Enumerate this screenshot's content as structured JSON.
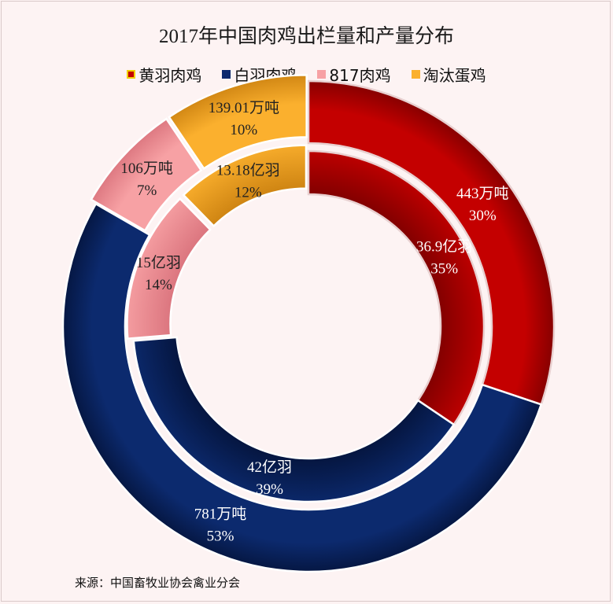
{
  "chart_data": {
    "type": "donut",
    "title": "2017年中国肉鸡出栏量和产量分布",
    "legend_position": "top",
    "categories": [
      "黄羽肉鸡",
      "白羽肉鸡",
      "817肉鸡",
      "淘汰蛋鸡"
    ],
    "colors": [
      "#c40000",
      "#0c2a6e",
      "#f7a1a4",
      "#fbb02e"
    ],
    "series": [
      {
        "name": "出栏量",
        "ring": "inner",
        "values": [
          36.9,
          42,
          15,
          13.18
        ],
        "unit": "亿羽",
        "labels": [
          "36.9亿羽",
          "42亿羽",
          "15亿羽",
          "13.18亿羽"
        ],
        "percents": [
          "35%",
          "39%",
          "14%",
          "12%"
        ]
      },
      {
        "name": "产量",
        "ring": "outer",
        "values": [
          443,
          781,
          106,
          139.01
        ],
        "unit": "万吨",
        "labels": [
          "443万吨",
          "781万吨",
          "106万吨",
          "139.01万吨"
        ],
        "percents": [
          "30%",
          "53%",
          "7%",
          "10%"
        ]
      }
    ]
  },
  "source": "来源：中国畜牧业协会禽业分会"
}
